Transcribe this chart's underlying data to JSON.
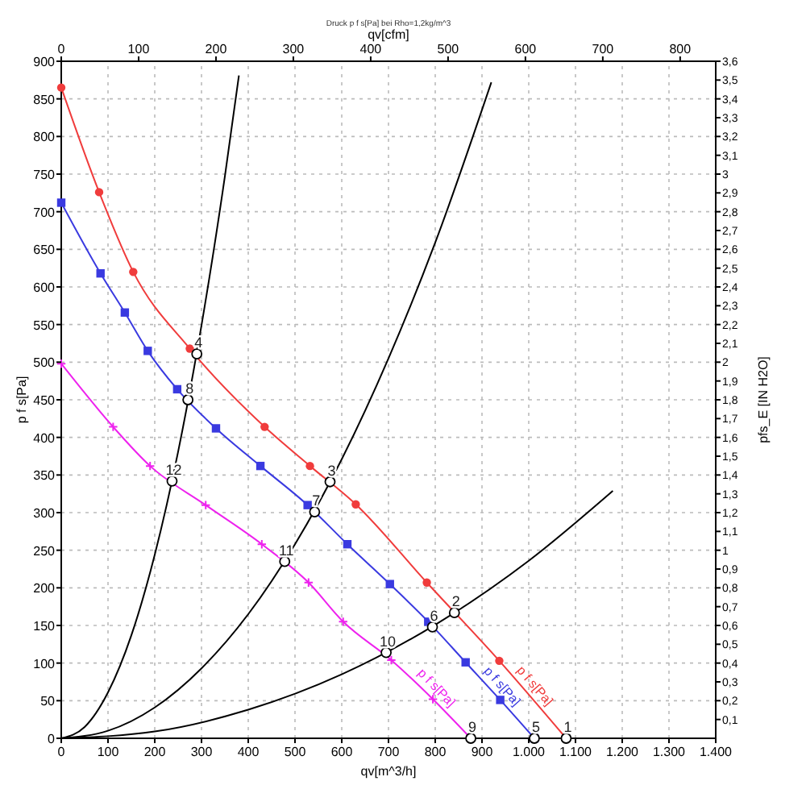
{
  "chart_data": {
    "type": "line",
    "title": "Druck p f s[Pa] bei Rho=1,2kg/m^3",
    "xlabel": "qv[m^3/h]",
    "ylabel": "p f s[Pa]",
    "x2label": "qv[cfm]",
    "y2label": "pfs_E [IN H2O]",
    "xlim": [
      0,
      1400
    ],
    "xticks": [
      0,
      100,
      200,
      300,
      400,
      500,
      600,
      700,
      800,
      900,
      {
        "value": 1000,
        "label": "1.000"
      },
      {
        "value": 1100,
        "label": "1.100"
      },
      {
        "value": 1200,
        "label": "1.200"
      },
      {
        "value": 1300,
        "label": "1.300"
      },
      {
        "value": 1400,
        "label": "1.400"
      }
    ],
    "ylim": [
      0,
      900
    ],
    "yticks": [
      0,
      50,
      100,
      150,
      200,
      250,
      300,
      350,
      400,
      450,
      500,
      550,
      600,
      650,
      700,
      750,
      800,
      850,
      900
    ],
    "x2lim": [
      0,
      846
    ],
    "x2ticks": [
      0,
      100,
      200,
      300,
      400,
      500,
      600,
      700,
      800
    ],
    "y2lim": [
      0,
      3.6
    ],
    "y2ticks": [
      {
        "value": 0.1,
        "label": "0,1"
      },
      {
        "value": 0.2,
        "label": "0,2"
      },
      {
        "value": 0.3,
        "label": "0,3"
      },
      {
        "value": 0.4,
        "label": "0,4"
      },
      {
        "value": 0.5,
        "label": "0,5"
      },
      {
        "value": 0.6,
        "label": "0,6"
      },
      {
        "value": 0.7,
        "label": "0,7"
      },
      {
        "value": 0.8,
        "label": "0,8"
      },
      {
        "value": 0.9,
        "label": "0,9"
      },
      1,
      {
        "value": 1.1,
        "label": "1,1"
      },
      {
        "value": 1.2,
        "label": "1,2"
      },
      {
        "value": 1.3,
        "label": "1,3"
      },
      {
        "value": 1.4,
        "label": "1,4"
      },
      {
        "value": 1.5,
        "label": "1,5"
      },
      {
        "value": 1.6,
        "label": "1,6"
      },
      {
        "value": 1.7,
        "label": "1,7"
      },
      {
        "value": 1.8,
        "label": "1,8"
      },
      {
        "value": 1.9,
        "label": "1,9"
      },
      2,
      {
        "value": 2.1,
        "label": "2,1"
      },
      {
        "value": 2.2,
        "label": "2,2"
      },
      {
        "value": 2.3,
        "label": "2,3"
      },
      {
        "value": 2.4,
        "label": "2,4"
      },
      {
        "value": 2.5,
        "label": "2,5"
      },
      {
        "value": 2.6,
        "label": "2,6"
      },
      {
        "value": 2.7,
        "label": "2,7"
      },
      {
        "value": 2.8,
        "label": "2,8"
      },
      {
        "value": 2.9,
        "label": "2,9"
      },
      3,
      {
        "value": 3.1,
        "label": "3,1"
      },
      {
        "value": 3.2,
        "label": "3,2"
      },
      {
        "value": 3.3,
        "label": "3,3"
      },
      {
        "value": 3.4,
        "label": "3,4"
      },
      {
        "value": 3.5,
        "label": "3,5"
      },
      {
        "value": 3.6,
        "label": "3,6"
      }
    ],
    "grid": true,
    "legend": false,
    "line_style": "solid",
    "series": [
      {
        "name": "p f s[Pa]",
        "color": "#f03c3c",
        "marker": "circle",
        "x": [
          0,
          81,
          154,
          275,
          435,
          532,
          630,
          782,
          937,
          1080
        ],
        "values": [
          865,
          726,
          620,
          518,
          414,
          362,
          311,
          207,
          103,
          0
        ]
      },
      {
        "name": "p f s[Pa]",
        "color": "#3a3ae0",
        "marker": "square",
        "x": [
          0,
          84,
          136,
          185,
          248,
          331,
          426,
          527,
          612,
          703,
          785,
          865,
          939,
          1012
        ],
        "values": [
          712,
          618,
          566,
          515,
          464,
          412,
          362,
          310,
          258,
          205,
          155,
          101,
          51,
          0
        ]
      },
      {
        "name": "p f s[Pa]",
        "color": "#ee22ee",
        "marker": "cross",
        "x": [
          0,
          111,
          190,
          309,
          429,
          529,
          603,
          706,
          795,
          876
        ],
        "values": [
          498,
          414,
          362,
          310,
          258,
          207,
          155,
          104,
          52,
          0
        ]
      },
      {
        "color": "#000000",
        "marker": "none",
        "x": [
          0,
          50,
          100,
          150,
          200,
          250,
          300,
          350,
          380
        ],
        "values": [
          0,
          15,
          61,
          137,
          244,
          381,
          549,
          747,
          881
        ]
      },
      {
        "color": "#000000",
        "marker": "none",
        "x": [
          0,
          100,
          200,
          300,
          400,
          500,
          600,
          700,
          800,
          920
        ],
        "values": [
          0,
          10,
          41,
          93,
          165,
          258,
          371,
          505,
          659,
          872
        ]
      },
      {
        "color": "#000000",
        "marker": "none",
        "x": [
          0,
          200,
          400,
          600,
          800,
          1000,
          1180
        ],
        "values": [
          0,
          9,
          38,
          85,
          151,
          236,
          329
        ]
      },
      {
        "type": "scatter",
        "color": "#000000",
        "marker": "circle",
        "x": [
          1080,
          841,
          575,
          290,
          1012,
          794,
          542,
          271,
          876,
          695,
          478,
          237
        ],
        "values": [
          0,
          167,
          341,
          511,
          0,
          148,
          301,
          450,
          0,
          114,
          235,
          342
        ]
      }
    ],
    "annotations": [
      {
        "text": "1",
        "x": 1080,
        "y": 0
      },
      {
        "text": "2",
        "x": 841,
        "y": 167
      },
      {
        "text": "3",
        "x": 575,
        "y": 341
      },
      {
        "text": "4",
        "x": 290,
        "y": 511
      },
      {
        "text": "5",
        "x": 1012,
        "y": 0
      },
      {
        "text": "6",
        "x": 794,
        "y": 148
      },
      {
        "text": "7",
        "x": 542,
        "y": 301
      },
      {
        "text": "8",
        "x": 271,
        "y": 450
      },
      {
        "text": "9",
        "x": 876,
        "y": 0
      },
      {
        "text": "10",
        "x": 695,
        "y": 114
      },
      {
        "text": "11",
        "x": 478,
        "y": 235
      },
      {
        "text": "12",
        "x": 237,
        "y": 342
      }
    ]
  }
}
